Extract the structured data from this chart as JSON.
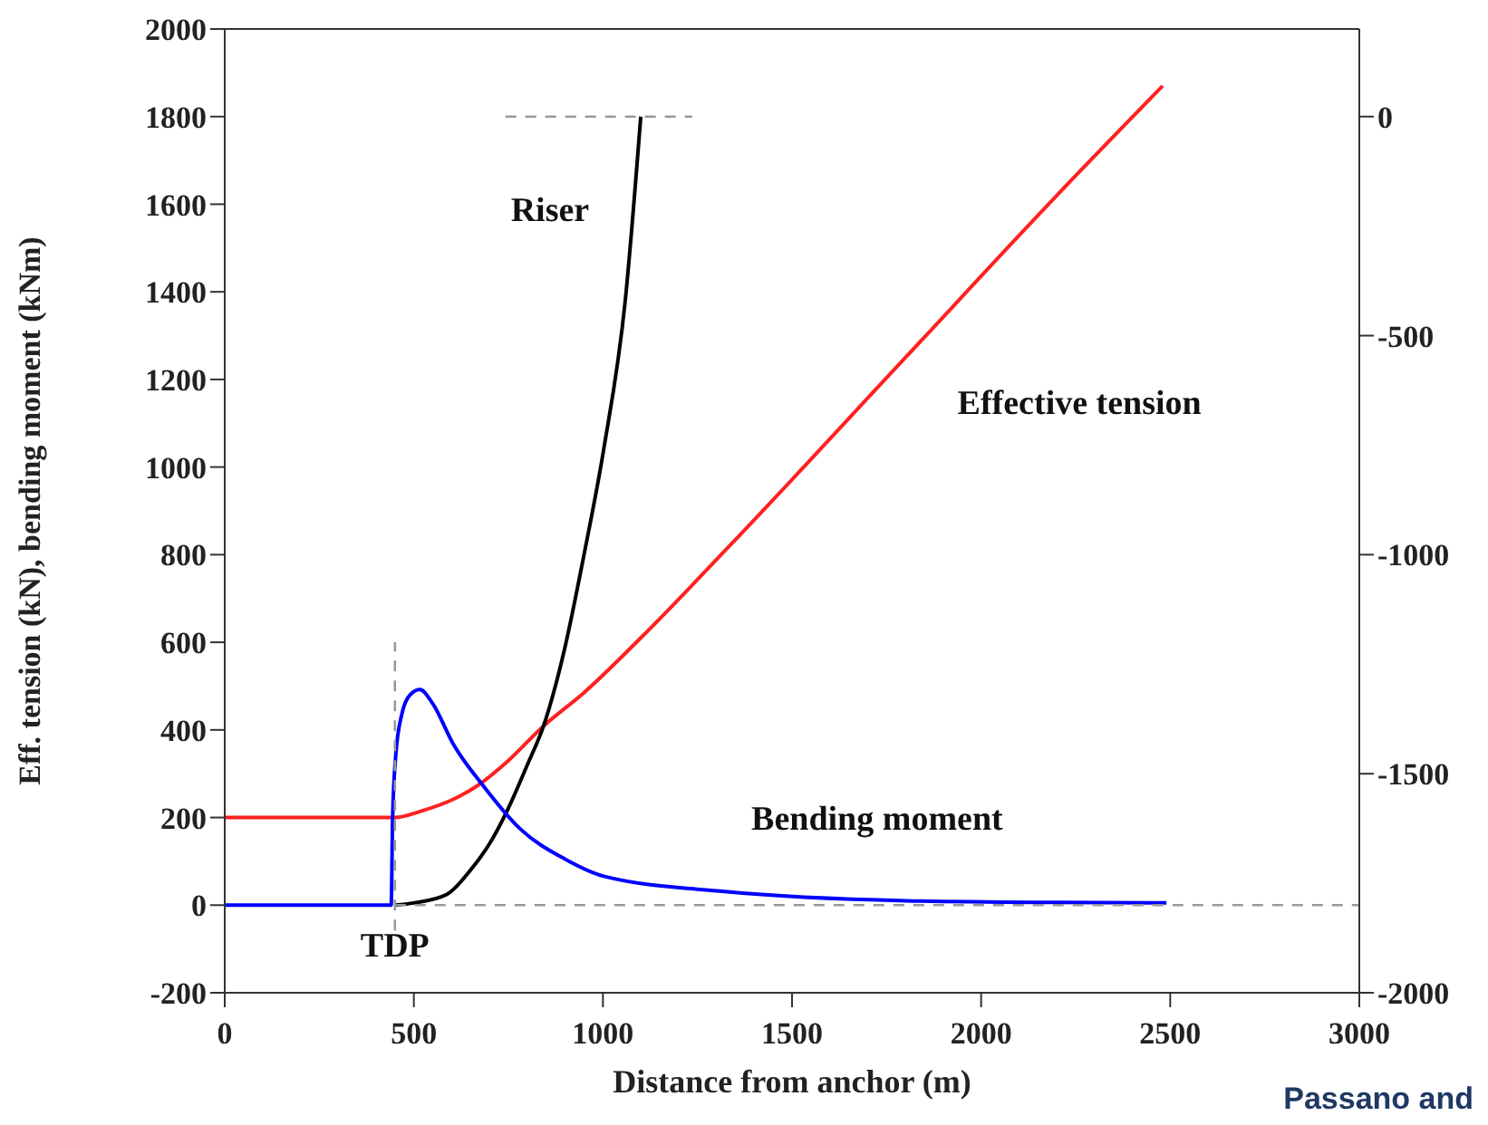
{
  "chart_data": {
    "type": "line",
    "xlabel": "Distance from anchor (m)",
    "ylabel": "Eff. tension (kN), bending moment (kNm)",
    "xlim": [
      0,
      3000
    ],
    "xticks": [
      0,
      500,
      1000,
      1500,
      2000,
      2500,
      3000
    ],
    "ylim": [
      -200,
      2000
    ],
    "yticks": [
      -200,
      0,
      200,
      400,
      600,
      800,
      1000,
      1200,
      1400,
      1600,
      1800,
      2000
    ],
    "y2lim": [
      -2000,
      200
    ],
    "y2ticks": [
      -2000,
      -1500,
      -1000,
      -500,
      0
    ],
    "legend": false,
    "marker": "none",
    "annotations": [
      "TDP",
      "Passano and"
    ],
    "series": [
      {
        "name": "Effective tension",
        "color": "#ff2020",
        "line_style": "solid",
        "x": [
          0,
          450,
          520,
          600,
          667,
          750,
          843,
          950,
          1100,
          1337,
          1800,
          2200,
          2480
        ],
        "values": [
          200,
          200,
          215,
          240,
          272,
          330,
          409,
          485,
          610,
          822,
          1250,
          1620,
          1870
        ]
      },
      {
        "name": "Riser",
        "color": "#000000",
        "line_style": "solid",
        "axis": "y2",
        "x": [
          450,
          500,
          588,
          650,
          700,
          747,
          800,
          843,
          900,
          950,
          1002,
          1059,
          1100
        ],
        "values": [
          -1800,
          -1795,
          -1775,
          -1720,
          -1660,
          -1584,
          -1480,
          -1391,
          -1210,
          -1000,
          -760,
          -420,
          0
        ]
      },
      {
        "name": "Bending moment",
        "color": "#0000ff",
        "line_style": "solid",
        "x": [
          0,
          440,
          444,
          452,
          468,
          490,
          516,
          550,
          604,
          684,
          780,
          900,
          1002,
          1322,
          1801,
          2200,
          2490
        ],
        "values": [
          0,
          0,
          202,
          340,
          435,
          480,
          492,
          460,
          368,
          272,
          175,
          105,
          66,
          31,
          10,
          6,
          5
        ]
      },
      {
        "color": "#999999",
        "line_style": "dashed",
        "x": [
          450,
          3000
        ],
        "values": [
          0,
          0
        ]
      },
      {
        "color": "#999999",
        "line_style": "dashed",
        "x": [
          450,
          450
        ],
        "values": [
          -58,
          600
        ]
      },
      {
        "color": "#999999",
        "line_style": "dashed",
        "axis": "y2",
        "x": [
          742,
          1236
        ],
        "values": [
          0,
          0
        ]
      }
    ]
  }
}
